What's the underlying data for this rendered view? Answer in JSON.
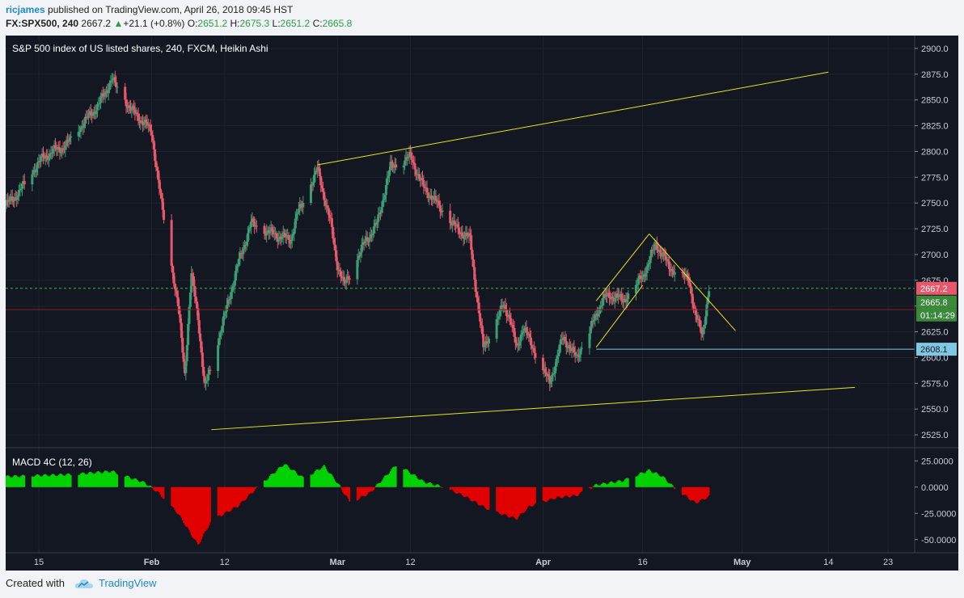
{
  "header": {
    "author": "ricjames",
    "published_text": "published on TradingView.com, April 26, 2018 09:45 HST",
    "symbol": "FX:SPX500, 240",
    "last_price": "2667.2",
    "change": "+21.1 (+0.8%)",
    "open_label": "O:",
    "open": "2651.2",
    "high_label": "H:",
    "high": "2675.3",
    "low_label": "L:",
    "low": "2651.2",
    "close_label": "C:",
    "close": "2665.8"
  },
  "footer": {
    "created_with": "Created with",
    "brand": "TradingView"
  },
  "colors": {
    "background": "#131722",
    "bull": "#3c9c74",
    "bear": "#e8576a",
    "trendline": "#e8e41e",
    "support_line": "#7ec8e3",
    "macd_pos": "#00d100",
    "macd_neg": "#e10000"
  },
  "chart_data": {
    "type": "candlestick",
    "title": "S&P 500 index of US listed shares, 240, FXCM, Heikin Ashi",
    "x_axis": {
      "ticks": [
        "15",
        "Feb",
        "12",
        "Mar",
        "12",
        "Apr",
        "16",
        "May",
        "14",
        "23"
      ],
      "range": [
        "2018-01-10",
        "2018-05-27"
      ]
    },
    "y_axis": {
      "min": 2512.5,
      "max": 2912.5,
      "ticks": [
        "2900.0",
        "2875.0",
        "2850.0",
        "2825.0",
        "2800.0",
        "2775.0",
        "2750.0",
        "2725.0",
        "2700.0",
        "2675.0",
        "2650.0",
        "2625.0",
        "2600.0",
        "2575.0",
        "2550.0",
        "2525.0"
      ]
    },
    "price_series": {
      "name": "Heikin Ashi",
      "key_points": [
        {
          "t": "2018-01-10",
          "v": 2748
        },
        {
          "t": "2018-01-12",
          "v": 2760
        },
        {
          "t": "2018-01-15",
          "v": 2790
        },
        {
          "t": "2018-01-17",
          "v": 2800
        },
        {
          "t": "2018-01-19",
          "v": 2805
        },
        {
          "t": "2018-01-22",
          "v": 2830
        },
        {
          "t": "2018-01-24",
          "v": 2845
        },
        {
          "t": "2018-01-26",
          "v": 2870
        },
        {
          "t": "2018-01-29",
          "v": 2840
        },
        {
          "t": "2018-02-01",
          "v": 2820
        },
        {
          "t": "2018-02-02",
          "v": 2770
        },
        {
          "t": "2018-02-05",
          "v": 2650
        },
        {
          "t": "2018-02-06",
          "v": 2585
        },
        {
          "t": "2018-02-07",
          "v": 2680
        },
        {
          "t": "2018-02-08",
          "v": 2640
        },
        {
          "t": "2018-02-09",
          "v": 2570
        },
        {
          "t": "2018-02-12",
          "v": 2640
        },
        {
          "t": "2018-02-14",
          "v": 2690
        },
        {
          "t": "2018-02-16",
          "v": 2730
        },
        {
          "t": "2018-02-20",
          "v": 2718
        },
        {
          "t": "2018-02-22",
          "v": 2715
        },
        {
          "t": "2018-02-23",
          "v": 2740
        },
        {
          "t": "2018-02-26",
          "v": 2783
        },
        {
          "t": "2018-02-28",
          "v": 2730
        },
        {
          "t": "2018-03-01",
          "v": 2690
        },
        {
          "t": "2018-03-02",
          "v": 2670
        },
        {
          "t": "2018-03-05",
          "v": 2710
        },
        {
          "t": "2018-03-07",
          "v": 2730
        },
        {
          "t": "2018-03-09",
          "v": 2785
        },
        {
          "t": "2018-03-12",
          "v": 2795
        },
        {
          "t": "2018-03-14",
          "v": 2765
        },
        {
          "t": "2018-03-16",
          "v": 2750
        },
        {
          "t": "2018-03-19",
          "v": 2725
        },
        {
          "t": "2018-03-21",
          "v": 2715
        },
        {
          "t": "2018-03-22",
          "v": 2660
        },
        {
          "t": "2018-03-23",
          "v": 2610
        },
        {
          "t": "2018-03-26",
          "v": 2650
        },
        {
          "t": "2018-03-27",
          "v": 2640
        },
        {
          "t": "2018-03-28",
          "v": 2608
        },
        {
          "t": "2018-03-29",
          "v": 2630
        },
        {
          "t": "2018-04-02",
          "v": 2575
        },
        {
          "t": "2018-04-04",
          "v": 2620
        },
        {
          "t": "2018-04-06",
          "v": 2600
        },
        {
          "t": "2018-04-09",
          "v": 2640
        },
        {
          "t": "2018-04-10",
          "v": 2658
        },
        {
          "t": "2018-04-12",
          "v": 2660
        },
        {
          "t": "2018-04-13",
          "v": 2655
        },
        {
          "t": "2018-04-16",
          "v": 2678
        },
        {
          "t": "2018-04-18",
          "v": 2710
        },
        {
          "t": "2018-04-19",
          "v": 2700
        },
        {
          "t": "2018-04-20",
          "v": 2688
        },
        {
          "t": "2018-04-23",
          "v": 2675
        },
        {
          "t": "2018-04-24",
          "v": 2640
        },
        {
          "t": "2018-04-25",
          "v": 2622
        },
        {
          "t": "2018-04-26",
          "v": 2666
        }
      ]
    },
    "annotations": [
      {
        "type": "trendline",
        "points": [
          {
            "t": "2018-02-10",
            "v": 2530
          },
          {
            "t": "2018-05-18",
            "v": 2571
          }
        ]
      },
      {
        "type": "trendline",
        "points": [
          {
            "t": "2018-02-26",
            "v": 2787
          },
          {
            "t": "2018-05-14",
            "v": 2877
          }
        ]
      },
      {
        "type": "trendline",
        "points": [
          {
            "t": "2018-04-09",
            "v": 2655
          },
          {
            "t": "2018-04-17",
            "v": 2720
          }
        ]
      },
      {
        "type": "trendline",
        "points": [
          {
            "t": "2018-04-09",
            "v": 2610
          },
          {
            "t": "2018-04-16",
            "v": 2670
          }
        ]
      },
      {
        "type": "trendline",
        "points": [
          {
            "t": "2018-04-17",
            "v": 2720
          },
          {
            "t": "2018-04-30",
            "v": 2626
          }
        ]
      },
      {
        "type": "horizontal_ray",
        "start": "2018-04-09",
        "v": 2608.1
      }
    ],
    "price_labels": [
      {
        "v": 2667.2,
        "text": "2667.2",
        "kind": "last"
      },
      {
        "v": 2665.8,
        "text": "2665.8",
        "kind": "close"
      },
      {
        "v": 2651.2,
        "text": "01:14:29",
        "kind": "countdown"
      },
      {
        "v": 2608.1,
        "text": "2608.1",
        "kind": "level"
      }
    ],
    "reference_lines": [
      {
        "v": 2667.2,
        "style": "dashed-green"
      },
      {
        "v": 2646.5,
        "style": "solid-red"
      }
    ],
    "macd": {
      "title": "MACD 4C (12, 26)",
      "y_axis": {
        "min": -62.5,
        "max": 37.5,
        "ticks": [
          "25.0000",
          "0.0000",
          "-25.0000",
          "-50.0000"
        ]
      },
      "key_points": [
        {
          "t": "2018-01-10",
          "v": 10
        },
        {
          "t": "2018-01-20",
          "v": 12
        },
        {
          "t": "2018-01-26",
          "v": 15
        },
        {
          "t": "2018-01-31",
          "v": 4
        },
        {
          "t": "2018-02-02",
          "v": -5
        },
        {
          "t": "2018-02-05",
          "v": -25
        },
        {
          "t": "2018-02-08",
          "v": -55
        },
        {
          "t": "2018-02-10",
          "v": -32
        },
        {
          "t": "2018-02-14",
          "v": -18
        },
        {
          "t": "2018-02-17",
          "v": 0
        },
        {
          "t": "2018-02-21",
          "v": 22
        },
        {
          "t": "2018-02-24",
          "v": 8
        },
        {
          "t": "2018-02-27",
          "v": 20
        },
        {
          "t": "2018-03-01",
          "v": 4
        },
        {
          "t": "2018-03-03",
          "v": -15
        },
        {
          "t": "2018-03-06",
          "v": -5
        },
        {
          "t": "2018-03-10",
          "v": 22
        },
        {
          "t": "2018-03-14",
          "v": 5
        },
        {
          "t": "2018-03-17",
          "v": 0
        },
        {
          "t": "2018-03-20",
          "v": -8
        },
        {
          "t": "2018-03-24",
          "v": -22
        },
        {
          "t": "2018-03-28",
          "v": -30
        },
        {
          "t": "2018-03-30",
          "v": -18
        },
        {
          "t": "2018-04-03",
          "v": -10
        },
        {
          "t": "2018-04-06",
          "v": -8
        },
        {
          "t": "2018-04-09",
          "v": 2
        },
        {
          "t": "2018-04-13",
          "v": 6
        },
        {
          "t": "2018-04-17",
          "v": 16
        },
        {
          "t": "2018-04-19",
          "v": 10
        },
        {
          "t": "2018-04-21",
          "v": -2
        },
        {
          "t": "2018-04-24",
          "v": -15
        },
        {
          "t": "2018-04-26",
          "v": -9
        }
      ]
    }
  }
}
